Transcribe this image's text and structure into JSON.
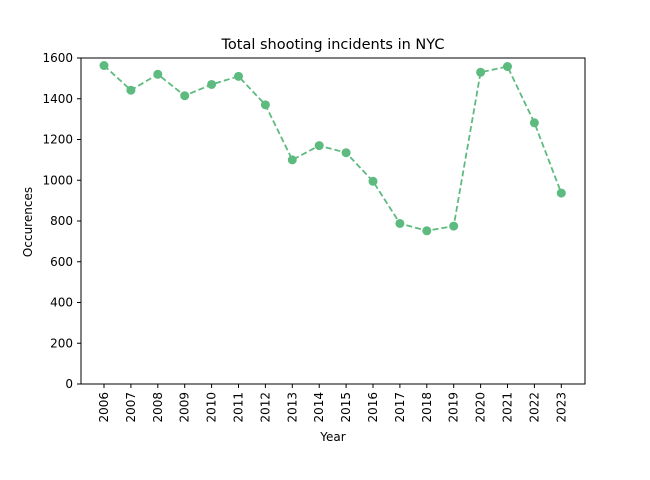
{
  "chart_data": {
    "type": "line",
    "title": "Total shooting incidents in NYC",
    "xlabel": "Year",
    "ylabel": "Occurences",
    "categories": [
      "2006",
      "2007",
      "2008",
      "2009",
      "2010",
      "2011",
      "2012",
      "2013",
      "2014",
      "2015",
      "2016",
      "2017",
      "2018",
      "2019",
      "2020",
      "2021",
      "2022",
      "2023"
    ],
    "series": [
      {
        "values": [
          1563,
          1442,
          1520,
          1415,
          1470,
          1510,
          1370,
          1100,
          1170,
          1135,
          995,
          788,
          752,
          775,
          1530,
          1558,
          1282,
          937
        ],
        "color": "#5dbb7f",
        "line_style": "dashed",
        "marker": "circle"
      }
    ],
    "ylim": [
      0,
      1600
    ],
    "yticks": [
      0,
      200,
      400,
      600,
      800,
      1000,
      1200,
      1400,
      1600
    ],
    "grid": false,
    "legend": "none"
  }
}
